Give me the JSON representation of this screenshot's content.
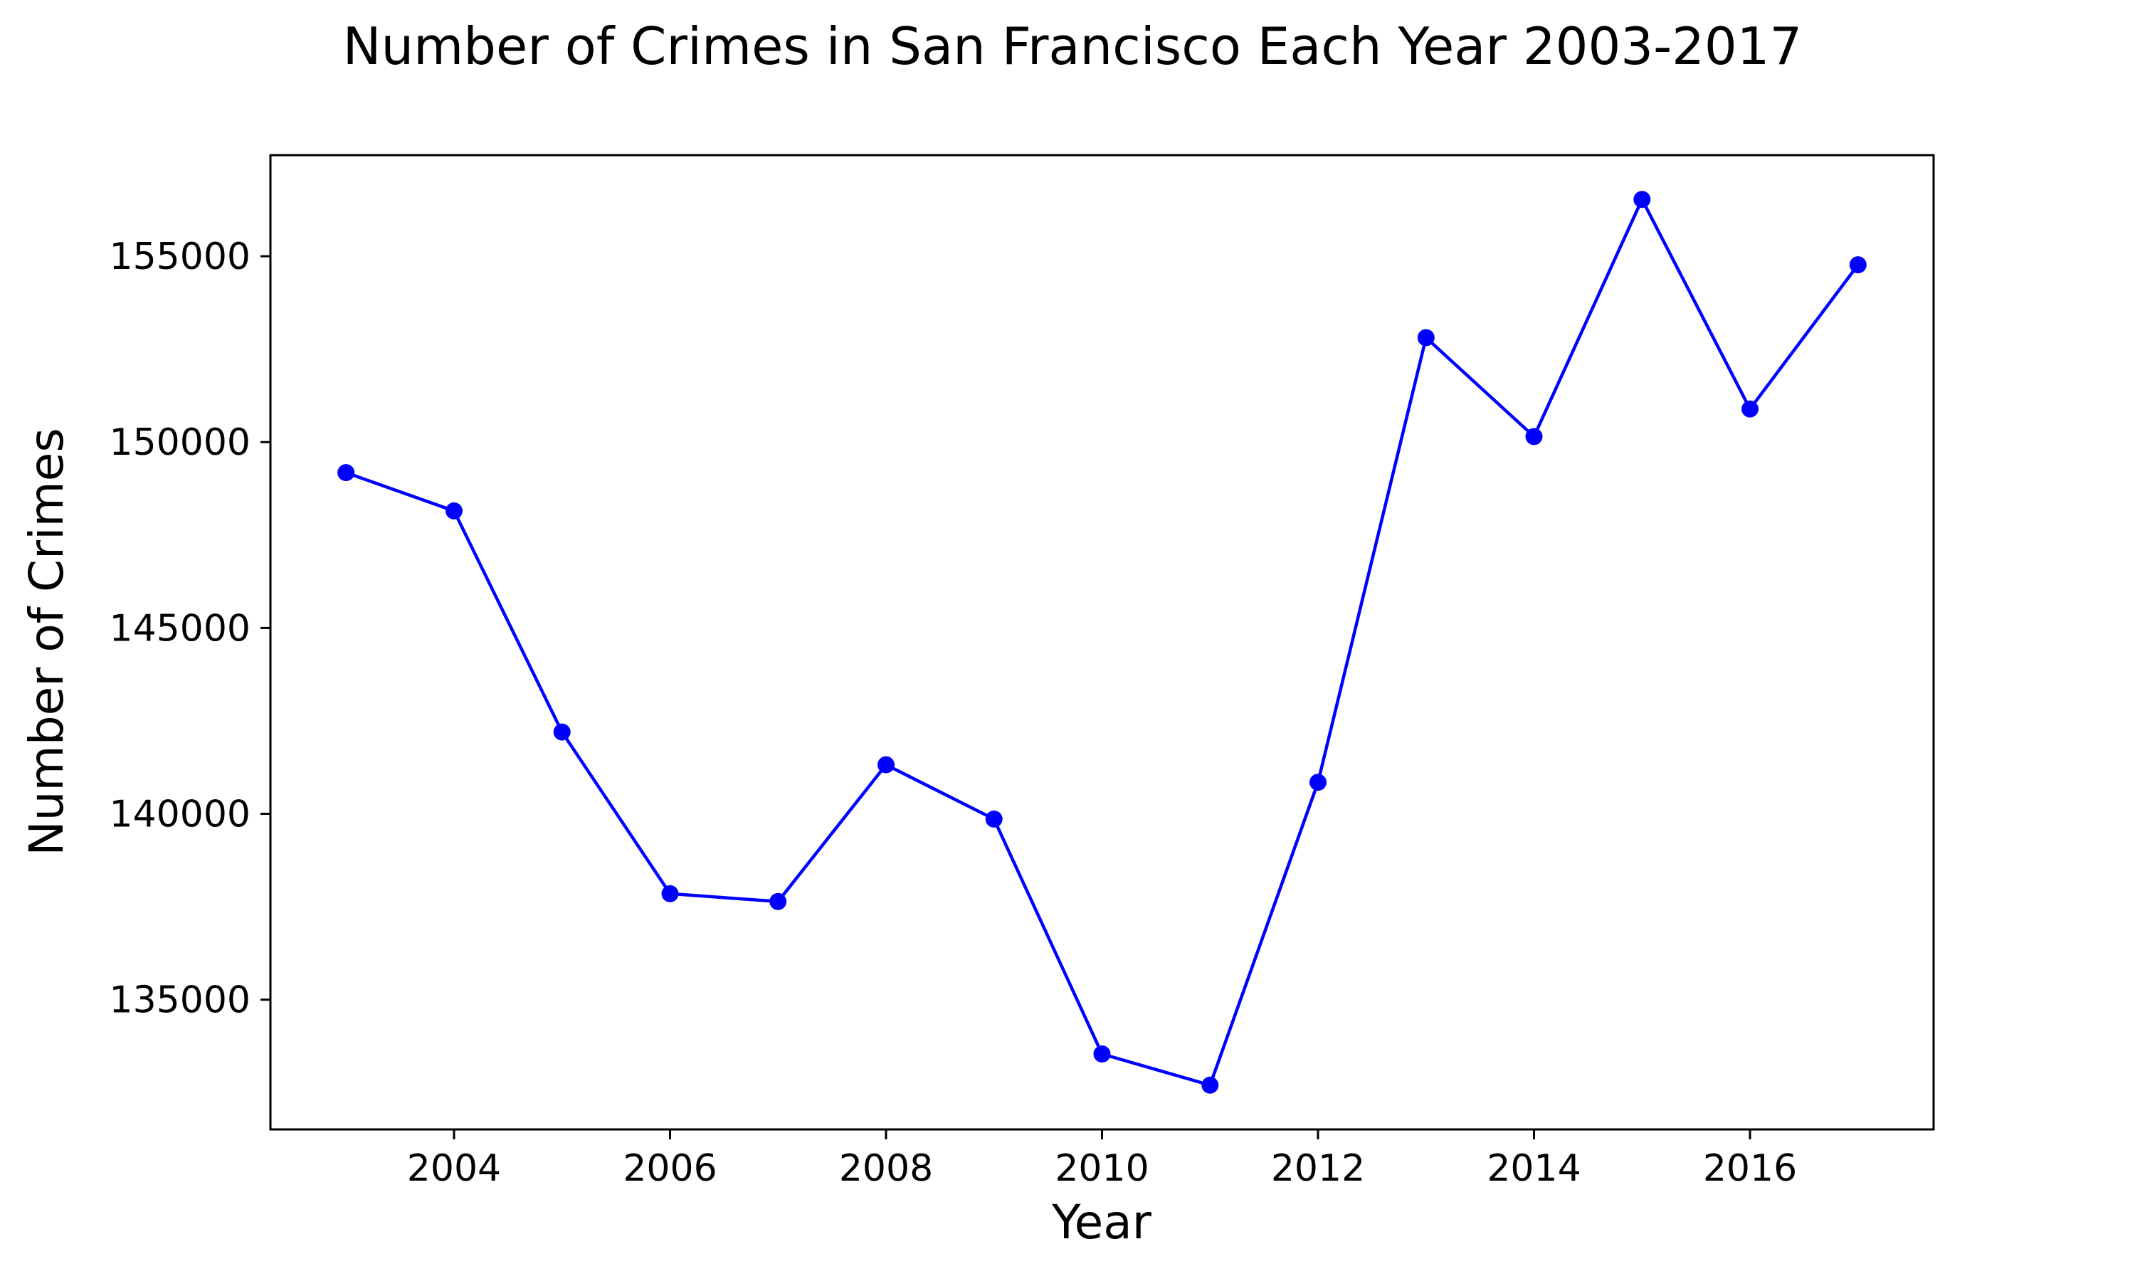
{
  "chart_data": {
    "type": "line",
    "title": "Number of Crimes in San Francisco Each Year 2003-2017",
    "xlabel": "Year",
    "ylabel": "Number of Crimes",
    "x": [
      2003,
      2004,
      2005,
      2006,
      2007,
      2008,
      2009,
      2010,
      2011,
      2012,
      2013,
      2014,
      2015,
      2016,
      2017
    ],
    "series": [
      {
        "values": [
          149180,
          148150,
          142200,
          137850,
          137640,
          141320,
          139860,
          133540,
          132700,
          140850,
          152810,
          150150,
          156530,
          150890,
          154770
        ],
        "color": "#0000ff",
        "marker": "circle"
      }
    ],
    "xticks": [
      "2004",
      "2006",
      "2008",
      "2010",
      "2012",
      "2014",
      "2016"
    ],
    "yticks": [
      "135000",
      "140000",
      "145000",
      "150000",
      "155000"
    ],
    "xlim": [
      2002.3,
      2017.7
    ],
    "ylim": [
      131510,
      157720
    ],
    "grid": false,
    "legend": false
  }
}
